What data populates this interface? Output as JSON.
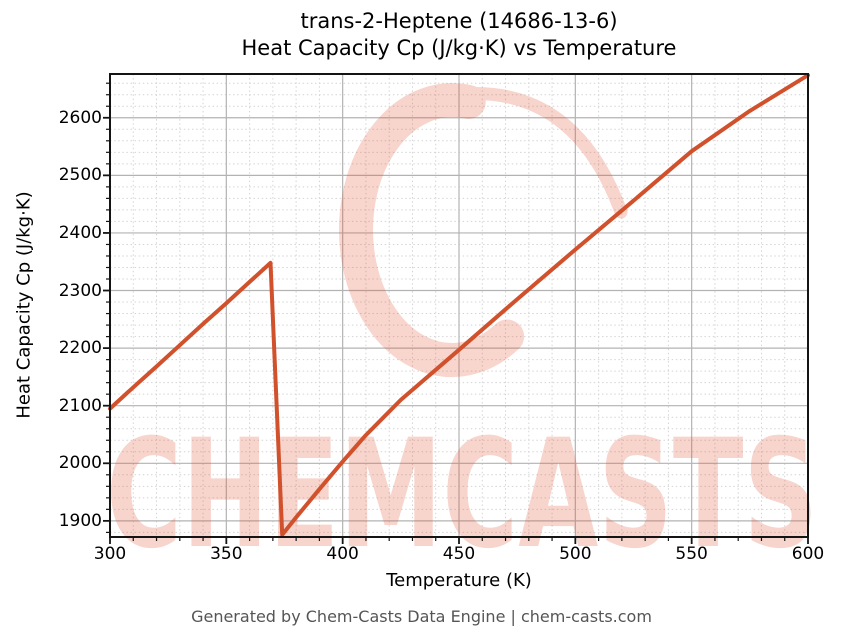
{
  "title_line1": "trans-2-Heptene (14686-13-6)",
  "title_line2": "Heat Capacity Cp (J/kg·K) vs Temperature",
  "footer": "Generated by Chem-Casts Data Engine | chem-casts.com",
  "watermark": {
    "text": "CHEMCASTS",
    "logo": "brush-circle-logo",
    "color": "#e05030",
    "opacity": 0.24
  },
  "colors": {
    "line": "#d0512b",
    "grid_major": "#b3b3b3",
    "grid_minor": "#d4d4d4",
    "spine": "#141414",
    "tick": "#141414",
    "footer_text": "#555555"
  },
  "chart_data": {
    "type": "line",
    "title": "trans-2-Heptene (14686-13-6)\nHeat Capacity Cp (J/kg·K) vs Temperature",
    "xlabel": "Temperature (K)",
    "ylabel": "Heat Capacity Cp (J/kg·K)",
    "xlim": [
      300,
      600
    ],
    "ylim": [
      1872,
      2676
    ],
    "x_ticks": [
      300,
      350,
      400,
      450,
      500,
      550,
      600
    ],
    "y_ticks": [
      1900,
      2000,
      2100,
      2200,
      2300,
      2400,
      2500,
      2600
    ],
    "x_minor_step": 10,
    "y_minor_step": 20,
    "grid": "major solid + minor dotted",
    "legend": "none",
    "series": [
      {
        "name": "Heat Capacity Cp",
        "color": "#d0512b",
        "points": [
          [
            300,
            2095
          ],
          [
            310,
            2132
          ],
          [
            320,
            2168
          ],
          [
            330,
            2205
          ],
          [
            340,
            2242
          ],
          [
            350,
            2278
          ],
          [
            360,
            2315
          ],
          [
            369,
            2348
          ],
          [
            374,
            1876
          ],
          [
            380,
            1906
          ],
          [
            390,
            1955
          ],
          [
            400,
            2003
          ],
          [
            410,
            2049
          ],
          [
            425,
            2110
          ],
          [
            450,
            2197
          ],
          [
            475,
            2285
          ],
          [
            500,
            2371
          ],
          [
            525,
            2456
          ],
          [
            550,
            2542
          ],
          [
            575,
            2612
          ],
          [
            600,
            2674
          ]
        ]
      }
    ]
  }
}
